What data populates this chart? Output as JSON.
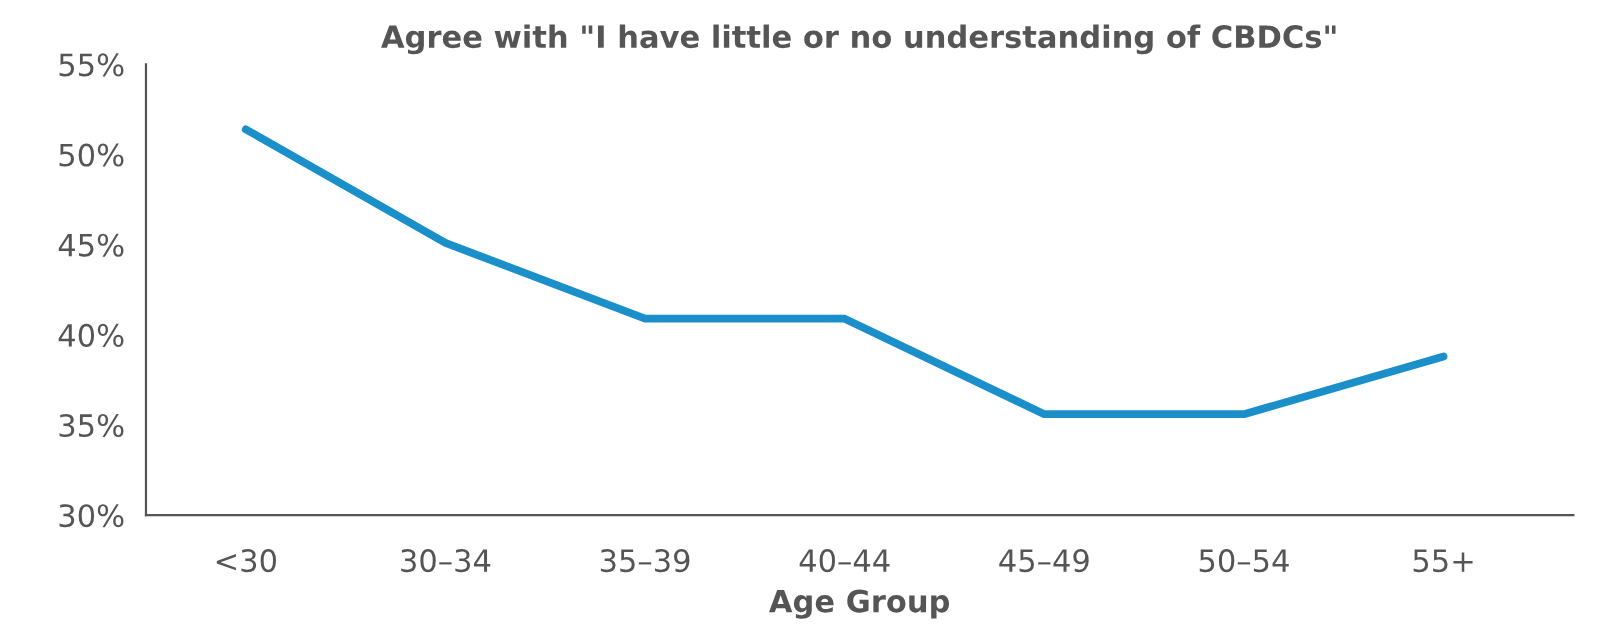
{
  "chart_data": {
    "type": "line",
    "title": "Agree with \"I have little or no understanding of CBDCs\"",
    "xlabel": "Age Group",
    "categories": [
      "<30",
      "30–34",
      "35–39",
      "40–44",
      "45–49",
      "50–54",
      "55+"
    ],
    "series": [
      {
        "color": "#1a8fc9",
        "values": [
          51.4,
          45.1,
          40.9,
          40.9,
          35.6,
          35.6,
          38.8
        ]
      }
    ],
    "ylim": [
      30,
      55
    ],
    "yticks": [
      {
        "value": 30,
        "label": "30%"
      },
      {
        "value": 35,
        "label": "35%"
      },
      {
        "value": 40,
        "label": "40%"
      },
      {
        "value": 45,
        "label": "45%"
      },
      {
        "value": 50,
        "label": "50%"
      },
      {
        "value": 55,
        "label": "55%"
      }
    ],
    "grid": false,
    "legend": false,
    "marker": "none",
    "line_style": "solid"
  }
}
